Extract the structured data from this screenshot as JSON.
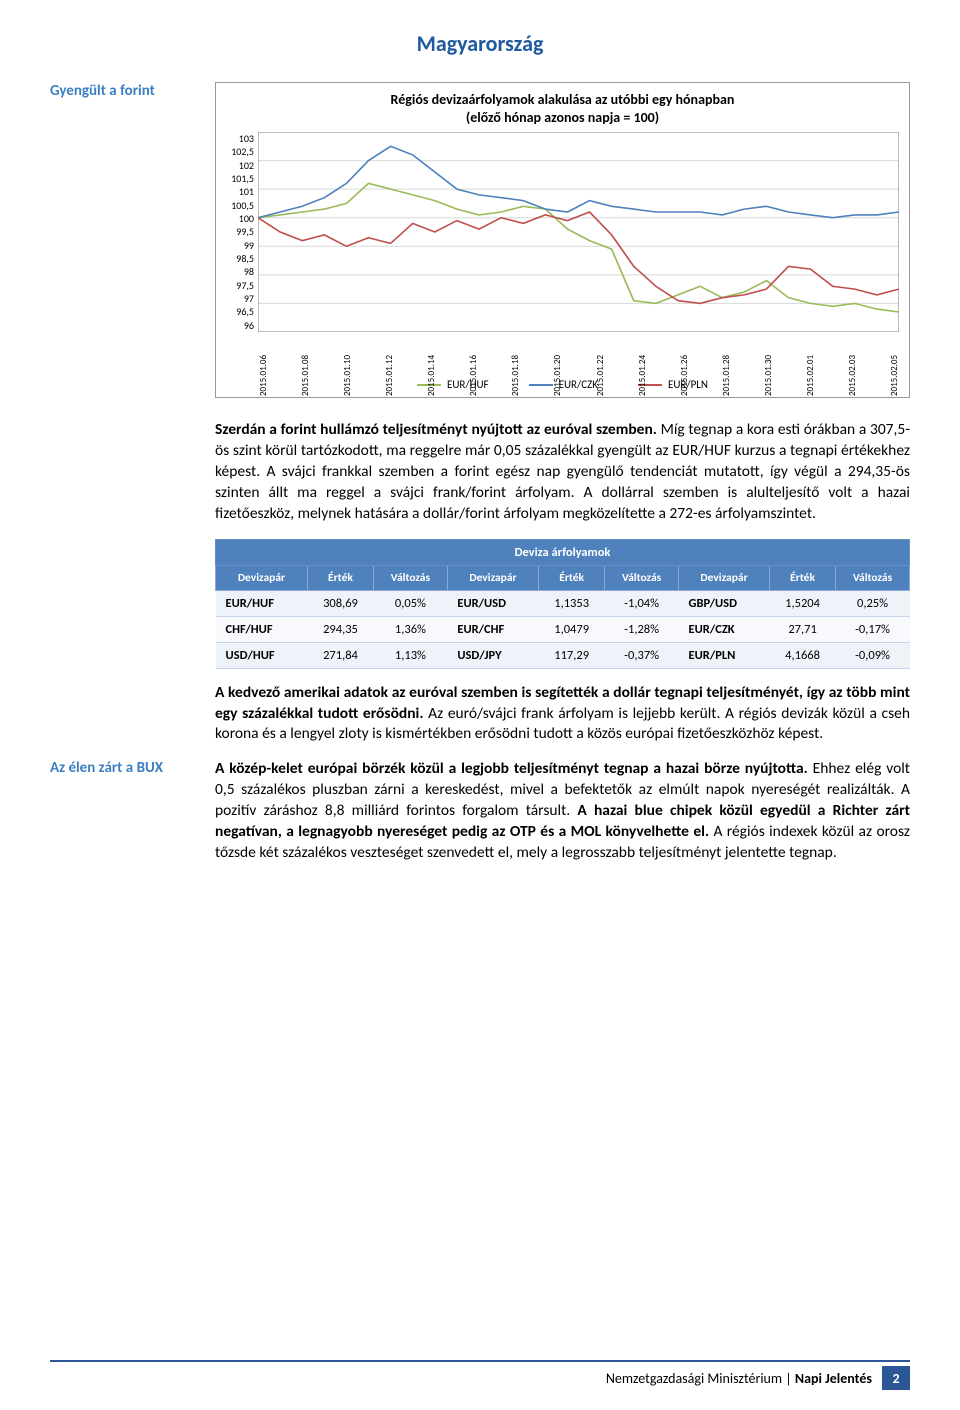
{
  "page": {
    "title": "Magyarország",
    "title_color": "#1f5aa0",
    "sidebar_label_1": "Gyengült a forint",
    "sidebar_label_1_color": "#3b7fc2",
    "sidebar_label_2": "Az élen zárt a BUX",
    "sidebar_label_2_color": "#3b7fc2"
  },
  "chart": {
    "title_line1": "Régiós devizaárfolyamok alakulása az utóbbi egy hónapban",
    "title_line2": "(előző hónap azonos napja = 100)",
    "ylim": [
      96,
      103
    ],
    "ytick_step": 0.5,
    "y_ticks": [
      "103",
      "102,5",
      "102",
      "101,5",
      "101",
      "100,5",
      "100",
      "99,5",
      "99",
      "98,5",
      "98",
      "97,5",
      "97",
      "96,5",
      "96"
    ],
    "x_labels": [
      "2015.01.06",
      "2015.01.08",
      "2015.01.10",
      "2015.01.12",
      "2015.01.14",
      "2015.01.16",
      "2015.01.18",
      "2015.01.20",
      "2015.01.22",
      "2015.01.24",
      "2015.01.26",
      "2015.01.28",
      "2015.01.30",
      "2015.02.01",
      "2015.02.03",
      "2015.02.05"
    ],
    "background_color": "#ffffff",
    "grid_color": "#d9d9d9",
    "axis_color": "#808080",
    "line_width": 1.6,
    "series": {
      "eur_huf": {
        "label": "EUR/HUF",
        "color": "#9bbb59",
        "y": [
          100,
          100.1,
          100.2,
          100.3,
          100.5,
          101.2,
          101,
          100.8,
          100.6,
          100.3,
          100.1,
          100.2,
          100.4,
          100.3,
          99.6,
          99.2,
          98.9,
          97.1,
          97.0,
          97.3,
          97.6,
          97.2,
          97.4,
          97.8,
          97.2,
          97.0,
          96.9,
          97.0,
          96.8,
          96.7
        ]
      },
      "eur_czk": {
        "label": "EUR/CZK",
        "color": "#4f81bd",
        "y": [
          100,
          100.2,
          100.4,
          100.7,
          101.2,
          102.0,
          102.5,
          102.2,
          101.6,
          101.0,
          100.8,
          100.7,
          100.6,
          100.3,
          100.2,
          100.6,
          100.4,
          100.3,
          100.2,
          100.2,
          100.2,
          100.1,
          100.3,
          100.4,
          100.2,
          100.1,
          100.0,
          100.1,
          100.1,
          100.2
        ]
      },
      "eur_pln": {
        "label": "EUR/PLN",
        "color": "#c0504d",
        "y": [
          100,
          99.5,
          99.2,
          99.4,
          99.0,
          99.3,
          99.1,
          99.8,
          99.5,
          99.9,
          99.6,
          100.0,
          99.8,
          100.1,
          99.9,
          100.2,
          99.4,
          98.3,
          97.6,
          97.1,
          97.0,
          97.2,
          97.3,
          97.5,
          98.3,
          98.2,
          97.6,
          97.5,
          97.3,
          97.5
        ]
      }
    }
  },
  "paragraphs": {
    "p1_bold": "Szerdán a forint hullámzó teljesítményt nyújtott az euróval szemben.",
    "p1_rest": " Míg tegnap a kora esti órákban a 307,5-ös szint körül tartózkodott, ma reggelre már 0,05 százalékkal gyengült az EUR/HUF kurzus a tegnapi értékekhez képest. A svájci frankkal szemben a forint egész nap gyengülő tendenciát mutatott, így végül a 294,35-ös szinten állt ma reggel a svájci frank/forint árfolyam. A dollárral szemben is alulteljesítő volt a hazai fizetőeszköz, melynek hatására a dollár/forint árfolyam megközelítette a 272-es árfolyamszintet.",
    "p2_bold": "A kedvező amerikai adatok az euróval szemben is segítették a dollár tegnapi teljesítményét, így az több mint egy százalékkal tudott erősödni.",
    "p2_rest": " Az euró/svájci frank árfolyam is lejjebb került. A régiós devizák közül a cseh korona és a lengyel zloty is kismértékben erősödni tudott a közös európai fizetőeszközhöz képest.",
    "p3_bold": "A közép-kelet európai börzék közül a legjobb teljesítményt tegnap a hazai börze nyújtotta.",
    "p3_rest": " Ehhez elég volt 0,5 százalékos pluszban zárni a kereskedést, mivel a befektetők az elmúlt napok nyereségét realizálták. A pozitív záráshoz 8,8 milliárd forintos forgalom társult. ",
    "p3_bold2": "A hazai blue chipek közül egyedül a Richter zárt negatívan, a legnagyobb nyereséget pedig az OTP és a MOL könyvelhette el.",
    "p3_rest2": " A régiós indexek közül az orosz tőzsde két százalékos veszteséget szenvedett el, mely a legrosszabb teljesítményt jelentette tegnap."
  },
  "fx_table": {
    "title": "Deviza árfolyamok",
    "header_bg": "#4f81bd",
    "header_fg": "#ffffff",
    "row_odd_bg": "#eef3fa",
    "row_even_bg": "#f7f9fc",
    "columns": [
      "Devizapár",
      "Érték",
      "Változás",
      "Devizapár",
      "Érték",
      "Változás",
      "Devizapár",
      "Érték",
      "Változás"
    ],
    "rows": [
      [
        "EUR/HUF",
        "308,69",
        "0,05%",
        "EUR/USD",
        "1,1353",
        "-1,04%",
        "GBP/USD",
        "1,5204",
        "0,25%"
      ],
      [
        "CHF/HUF",
        "294,35",
        "1,36%",
        "EUR/CHF",
        "1,0479",
        "-1,28%",
        "EUR/CZK",
        "27,71",
        "-0,17%"
      ],
      [
        "USD/HUF",
        "271,84",
        "1,13%",
        "USD/JPY",
        "117,29",
        "-0,37%",
        "EUR/PLN",
        "4,1668",
        "-0,09%"
      ]
    ]
  },
  "footer": {
    "label": "Nemzetgazdasági Minisztérium | ",
    "label_bold": "Napi Jelentés",
    "page_number": "2",
    "bar_color": "#2b5797"
  }
}
